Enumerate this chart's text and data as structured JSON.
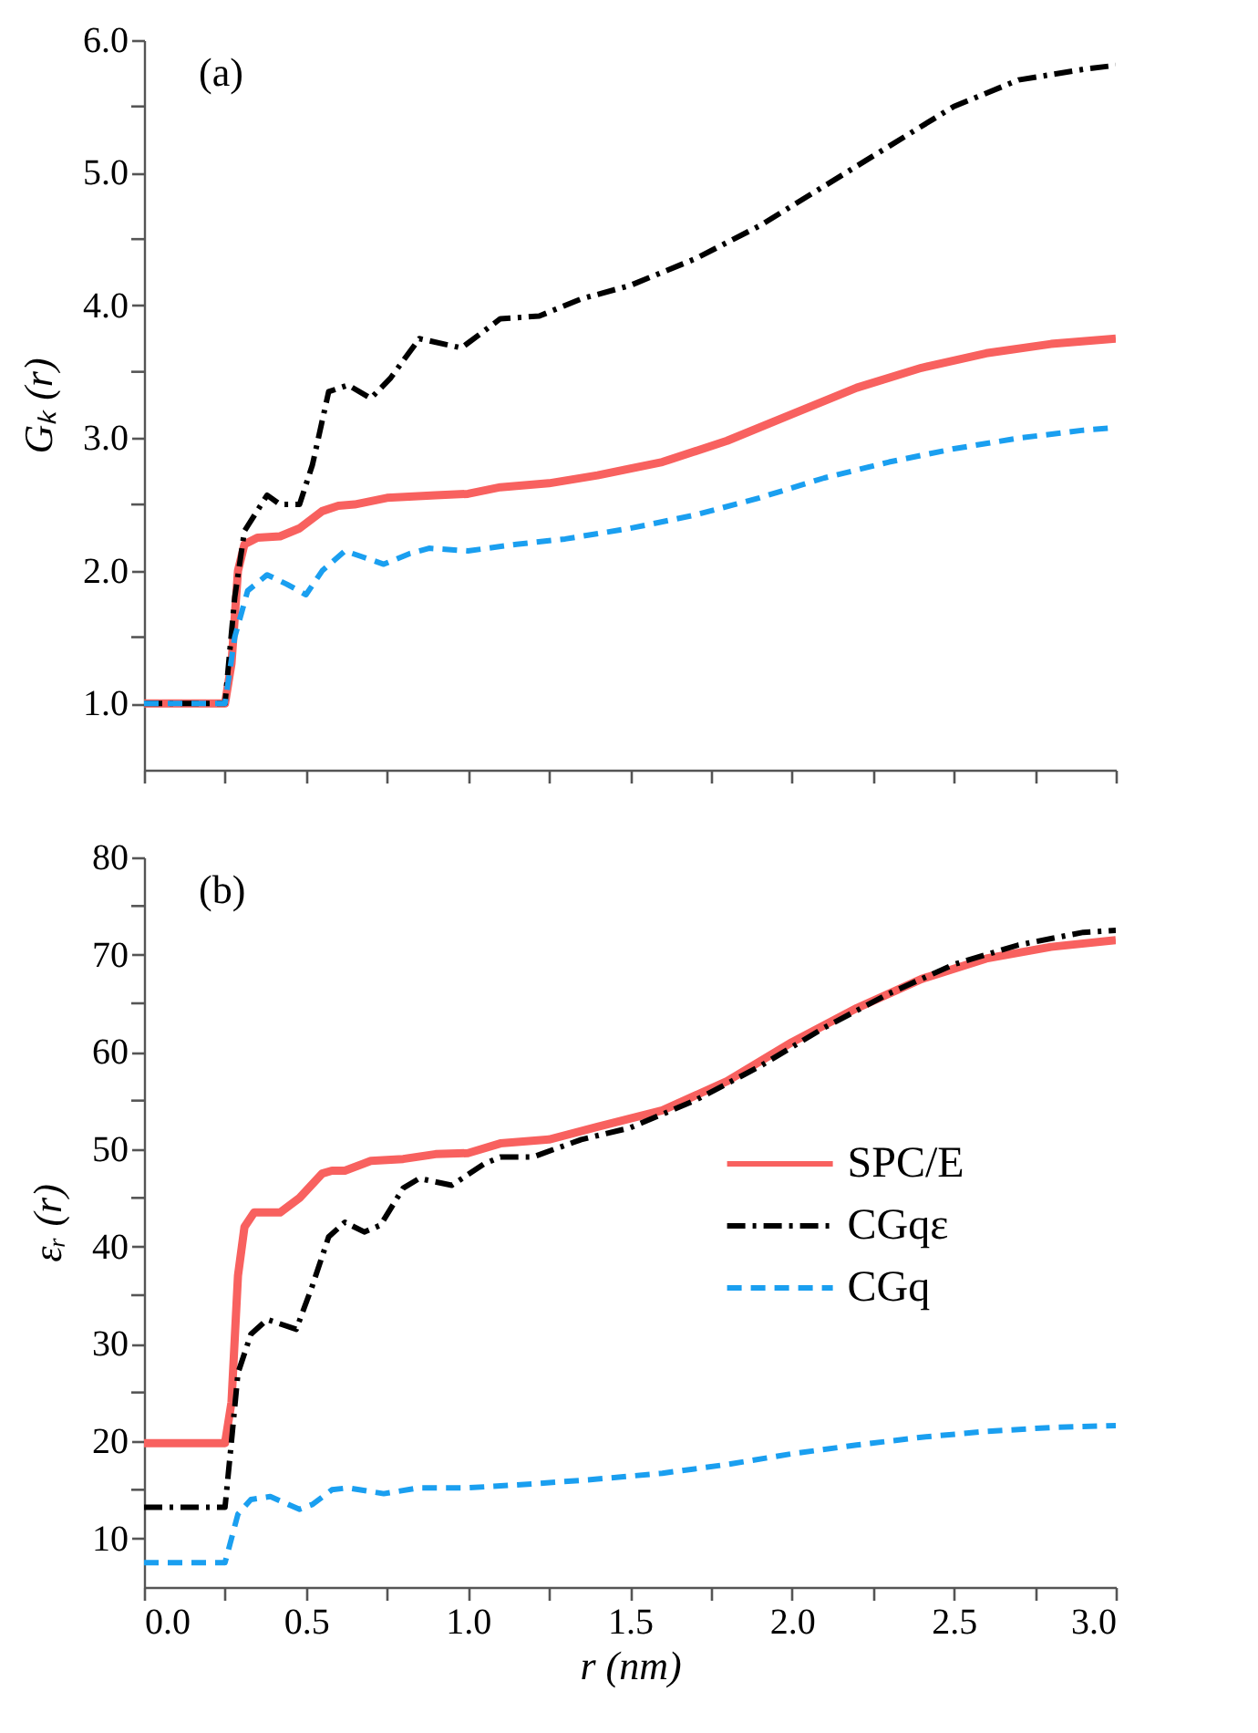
{
  "chart_data": [
    {
      "type": "line",
      "ylabel": "Gₖ (r)",
      "annotations": [
        "(a)"
      ],
      "tick_labels": "y",
      "legend": false,
      "grid": false,
      "xlim": [
        0,
        3
      ],
      "xticks": [
        {
          "value": 0,
          "label": null
        },
        {
          "value": 0.25,
          "label": null
        },
        {
          "value": 0.5,
          "label": null
        },
        {
          "value": 0.75,
          "label": null
        },
        {
          "value": 1,
          "label": null
        },
        {
          "value": 1.25,
          "label": null
        },
        {
          "value": 1.5,
          "label": null
        },
        {
          "value": 1.75,
          "label": null
        },
        {
          "value": 2,
          "label": null
        },
        {
          "value": 2.25,
          "label": null
        },
        {
          "value": 2.5,
          "label": null
        },
        {
          "value": 2.75,
          "label": null
        },
        {
          "value": 3,
          "label": null
        }
      ],
      "ylim": [
        0.5,
        6.0
      ],
      "yticks": [
        {
          "value": 1,
          "label": "1.0"
        },
        {
          "value": 1.5,
          "label": null
        },
        {
          "value": 2,
          "label": "2.0"
        },
        {
          "value": 2.5,
          "label": null
        },
        {
          "value": 3,
          "label": "3.0"
        },
        {
          "value": 3.5,
          "label": null
        },
        {
          "value": 4,
          "label": "4.0"
        },
        {
          "value": 4.5,
          "label": null
        },
        {
          "value": 5,
          "label": "5.0"
        },
        {
          "value": 5.5,
          "label": null
        },
        {
          "value": 6,
          "label": "6.0"
        }
      ],
      "series": [
        {
          "color": "#f8615f",
          "line_style": "solid",
          "x": [
            0,
            0.25,
            0.27,
            0.29,
            0.31,
            0.35,
            0.42,
            0.48,
            0.55,
            0.6,
            0.65,
            0.75,
            0.9,
            1.0,
            1.1,
            1.25,
            1.4,
            1.6,
            1.8,
            2.0,
            2.2,
            2.4,
            2.6,
            2.8,
            3.0
          ],
          "values": [
            1.0,
            1.0,
            1.3,
            2.0,
            2.2,
            2.25,
            2.26,
            2.32,
            2.45,
            2.49,
            2.5,
            2.55,
            2.57,
            2.58,
            2.63,
            2.66,
            2.72,
            2.82,
            2.98,
            3.18,
            3.38,
            3.53,
            3.64,
            3.71,
            3.75
          ]
        },
        {
          "color": "#000000",
          "line_style": "dashdot",
          "x": [
            0,
            0.25,
            0.28,
            0.31,
            0.38,
            0.42,
            0.48,
            0.52,
            0.57,
            0.63,
            0.7,
            0.76,
            0.85,
            0.98,
            1.1,
            1.22,
            1.35,
            1.5,
            1.7,
            1.9,
            2.1,
            2.3,
            2.5,
            2.7,
            2.9,
            3.0
          ],
          "values": [
            1.0,
            1.0,
            1.8,
            2.3,
            2.57,
            2.5,
            2.5,
            2.8,
            3.35,
            3.4,
            3.3,
            3.45,
            3.75,
            3.68,
            3.9,
            3.92,
            4.05,
            4.15,
            4.35,
            4.6,
            4.9,
            5.2,
            5.5,
            5.7,
            5.78,
            5.81
          ]
        },
        {
          "color": "#1a9ff0",
          "line_style": "dashed",
          "x": [
            0,
            0.25,
            0.28,
            0.32,
            0.38,
            0.44,
            0.5,
            0.55,
            0.62,
            0.68,
            0.74,
            0.82,
            0.88,
            1.0,
            1.15,
            1.3,
            1.5,
            1.7,
            1.9,
            2.1,
            2.3,
            2.5,
            2.7,
            2.9,
            3.0
          ],
          "values": [
            1.0,
            1.0,
            1.5,
            1.85,
            1.97,
            1.9,
            1.82,
            2.0,
            2.15,
            2.1,
            2.05,
            2.13,
            2.17,
            2.15,
            2.2,
            2.24,
            2.32,
            2.42,
            2.55,
            2.7,
            2.82,
            2.92,
            3.0,
            3.06,
            3.08
          ]
        }
      ]
    },
    {
      "type": "line",
      "xlabel": "r (nm)",
      "ylabel": "εᵣ (r)",
      "annotations": [
        "(b)"
      ],
      "legend": "right",
      "grid": false,
      "xlim": [
        0,
        3
      ],
      "xticks": [
        {
          "value": 0,
          "label": "0.0"
        },
        {
          "value": 0.25,
          "label": null
        },
        {
          "value": 0.5,
          "label": "0.5"
        },
        {
          "value": 0.75,
          "label": null
        },
        {
          "value": 1,
          "label": "1.0"
        },
        {
          "value": 1.25,
          "label": null
        },
        {
          "value": 1.5,
          "label": "1.5"
        },
        {
          "value": 1.75,
          "label": null
        },
        {
          "value": 2,
          "label": "2.0"
        },
        {
          "value": 2.25,
          "label": null
        },
        {
          "value": 2.5,
          "label": "2.5"
        },
        {
          "value": 2.75,
          "label": null
        },
        {
          "value": 3,
          "label": "3.0"
        }
      ],
      "ylim": [
        5,
        80
      ],
      "yticks": [
        10,
        {
          "value": 15,
          "label": null
        },
        20,
        {
          "value": 25,
          "label": null
        },
        30,
        {
          "value": 35,
          "label": null
        },
        40,
        {
          "value": 45,
          "label": null
        },
        50,
        {
          "value": 55,
          "label": null
        },
        60,
        {
          "value": 65,
          "label": null
        },
        70,
        {
          "value": 75,
          "label": null
        },
        80
      ],
      "series": [
        {
          "name": "SPC/E",
          "color": "#f8615f",
          "line_style": "solid",
          "x": [
            0,
            0.25,
            0.27,
            0.29,
            0.31,
            0.34,
            0.42,
            0.48,
            0.55,
            0.58,
            0.62,
            0.7,
            0.8,
            0.9,
            1.0,
            1.1,
            1.25,
            1.4,
            1.6,
            1.8,
            2.0,
            2.2,
            2.4,
            2.6,
            2.8,
            3.0
          ],
          "values": [
            19.8,
            19.8,
            24,
            37,
            42,
            43.5,
            43.5,
            45,
            47.5,
            47.8,
            47.8,
            48.8,
            49,
            49.5,
            49.6,
            50.6,
            51,
            52.3,
            54,
            57,
            61,
            64.5,
            67.5,
            69.6,
            70.8,
            71.5
          ]
        },
        {
          "name": "CGqε",
          "color": "#000000",
          "line_style": "dashdot",
          "x": [
            0,
            0.25,
            0.27,
            0.29,
            0.33,
            0.38,
            0.47,
            0.52,
            0.57,
            0.62,
            0.68,
            0.73,
            0.8,
            0.85,
            0.95,
            1.05,
            1.1,
            1.2,
            1.35,
            1.5,
            1.7,
            1.9,
            2.1,
            2.3,
            2.5,
            2.7,
            2.9,
            3.0
          ],
          "values": [
            13.2,
            13.2,
            20,
            27,
            31,
            32.5,
            31.5,
            36,
            41,
            42.5,
            41.5,
            42.2,
            46,
            47,
            46.3,
            48.5,
            49.2,
            49.2,
            51,
            52.2,
            55,
            58.5,
            62.5,
            66,
            69,
            71,
            72.3,
            72.5
          ]
        },
        {
          "name": "CGq",
          "color": "#1a9ff0",
          "line_style": "dashed",
          "x": [
            0,
            0.25,
            0.29,
            0.33,
            0.39,
            0.48,
            0.52,
            0.58,
            0.63,
            0.74,
            0.85,
            1.0,
            1.2,
            1.4,
            1.6,
            1.8,
            2.0,
            2.2,
            2.4,
            2.6,
            2.8,
            3.0
          ],
          "values": [
            7.5,
            7.5,
            12.5,
            14,
            14.3,
            13,
            13.5,
            15,
            15.2,
            14.6,
            15.2,
            15.2,
            15.6,
            16.1,
            16.7,
            17.6,
            18.7,
            19.6,
            20.4,
            21,
            21.4,
            21.6
          ]
        }
      ]
    }
  ]
}
